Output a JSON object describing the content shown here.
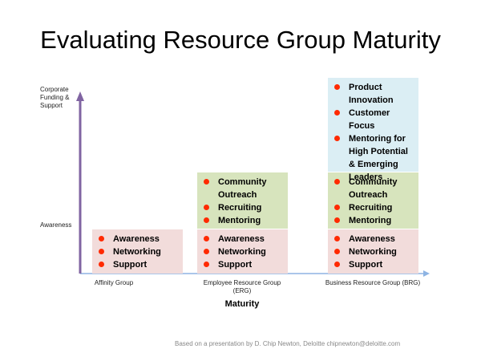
{
  "title": "Evaluating Resource Group Maturity",
  "y_axis_labels": [
    "Corporate Funding & Support",
    "Awareness"
  ],
  "x_axis_label": "Maturity",
  "columns": [
    {
      "label": "Affinity Group",
      "tiers": [
        {
          "items": [
            "Awareness",
            "Networking",
            "Support"
          ]
        }
      ]
    },
    {
      "label": "Employee Resource Group (ERG)",
      "tiers": [
        {
          "items": [
            "Awareness",
            "Networking",
            "Support"
          ]
        },
        {
          "items": [
            "Community Outreach",
            "Recruiting",
            "Mentoring"
          ]
        }
      ]
    },
    {
      "label": "Business Resource Group (BRG)",
      "tiers": [
        {
          "items": [
            "Awareness",
            "Networking",
            "Support"
          ]
        },
        {
          "items": [
            "Community Outreach",
            "Recruiting",
            "Mentoring"
          ]
        },
        {
          "items": [
            "Product Innovation",
            "Customer Focus",
            "Mentoring for High Potential & Emerging Leaders"
          ]
        }
      ]
    }
  ],
  "footer": "Based on a presentation by D. Chip Newton, Deloitte chipnewton@deloitte.com"
}
